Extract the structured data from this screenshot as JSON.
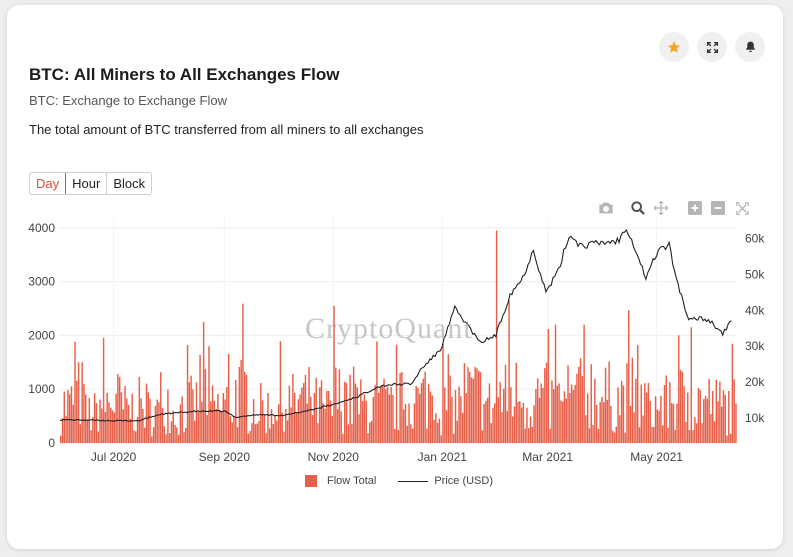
{
  "header": {
    "title": "BTC: All Miners to All Exchanges Flow",
    "subtitle": "BTC: Exchange to Exchange Flow",
    "description": "The total amount of BTC transferred from all miners to all exchanges"
  },
  "tabs": [
    {
      "label": "Day",
      "active": true
    },
    {
      "label": "Hour",
      "active": false
    },
    {
      "label": "Block",
      "active": false
    }
  ],
  "top_buttons": [
    {
      "icon": "star-icon",
      "color": "#f5a623"
    },
    {
      "icon": "expand-icon"
    },
    {
      "icon": "bell-icon"
    }
  ],
  "toolbar": [
    "camera-icon",
    "zoom-icon",
    "pan-icon",
    "zoom-in-icon",
    "zoom-out-icon",
    "autoscale-icon"
  ],
  "watermark": "CryptoQuant",
  "chart_data": {
    "type": "bar",
    "x_range": [
      "2020-06-01",
      "2021-06-15"
    ],
    "x_ticks": [
      "Jul 2020",
      "Sep 2020",
      "Nov 2020",
      "Jan 2021",
      "Mar 2021",
      "May 2021"
    ],
    "y_left": {
      "range": [
        0,
        4200
      ],
      "ticks": [
        "0",
        "1000",
        "2000",
        "3000",
        "4000"
      ]
    },
    "y_right": {
      "range": [
        3000,
        66000
      ],
      "ticks": [
        "10k",
        "20k",
        "30k",
        "40k",
        "50k",
        "60k"
      ]
    },
    "grid": true,
    "legend_position": "bottom",
    "series": [
      {
        "name": "Flow Total",
        "type": "bar",
        "color": "#e8604a",
        "axis": "left",
        "weekly_values": [
          900,
          1150,
          700,
          950,
          1000,
          800,
          880,
          750,
          1050,
          700,
          900,
          1300,
          820,
          950,
          1200,
          900,
          800,
          850,
          950,
          1050,
          900,
          780,
          1100,
          950,
          880,
          920,
          850,
          980,
          1000,
          1150,
          930,
          900,
          1200,
          1150,
          900,
          1100,
          1200,
          1000,
          1100,
          950,
          900,
          1150,
          1300,
          1100,
          1050,
          1150,
          1000,
          850,
          900,
          1050,
          800,
          980,
          900,
          880
        ],
        "peaks": [
          {
            "date": "2020-08-20",
            "value": 2250
          },
          {
            "date": "2020-11-01",
            "value": 2550
          },
          {
            "date": "2021-01-31",
            "value": 3950
          },
          {
            "date": "2021-02-07",
            "value": 2650
          },
          {
            "date": "2021-03-05",
            "value": 2200
          },
          {
            "date": "2021-03-21",
            "value": 2200
          },
          {
            "date": "2021-05-20",
            "value": 2150
          }
        ]
      },
      {
        "name": "Price (USD)",
        "type": "line",
        "color": "#222222",
        "axis": "right",
        "points": [
          [
            "2020-06-01",
            9500
          ],
          [
            "2020-06-15",
            9400
          ],
          [
            "2020-07-01",
            9200
          ],
          [
            "2020-07-15",
            9200
          ],
          [
            "2020-07-27",
            11000
          ],
          [
            "2020-08-15",
            11800
          ],
          [
            "2020-09-01",
            11900
          ],
          [
            "2020-09-07",
            10200
          ],
          [
            "2020-09-20",
            10900
          ],
          [
            "2020-10-05",
            10700
          ],
          [
            "2020-10-20",
            12300
          ],
          [
            "2020-11-01",
            13700
          ],
          [
            "2020-11-15",
            16000
          ],
          [
            "2020-11-25",
            18500
          ],
          [
            "2020-12-01",
            19200
          ],
          [
            "2020-12-15",
            19500
          ],
          [
            "2020-12-20",
            23500
          ],
          [
            "2020-12-31",
            29000
          ],
          [
            "2021-01-08",
            40500
          ],
          [
            "2021-01-15",
            36000
          ],
          [
            "2021-01-22",
            31000
          ],
          [
            "2021-01-31",
            33000
          ],
          [
            "2021-02-08",
            44500
          ],
          [
            "2021-02-15",
            49000
          ],
          [
            "2021-02-21",
            57000
          ],
          [
            "2021-02-28",
            45000
          ],
          [
            "2021-03-07",
            51000
          ],
          [
            "2021-03-13",
            61000
          ],
          [
            "2021-03-20",
            58000
          ],
          [
            "2021-03-31",
            58800
          ],
          [
            "2021-04-10",
            59500
          ],
          [
            "2021-04-14",
            63500
          ],
          [
            "2021-04-20",
            56000
          ],
          [
            "2021-04-25",
            49000
          ],
          [
            "2021-05-02",
            57000
          ],
          [
            "2021-05-08",
            58000
          ],
          [
            "2021-05-12",
            49000
          ],
          [
            "2021-05-19",
            37000
          ],
          [
            "2021-05-25",
            38000
          ],
          [
            "2021-05-31",
            37000
          ],
          [
            "2021-06-07",
            33500
          ],
          [
            "2021-06-12",
            37000
          ]
        ]
      }
    ]
  }
}
